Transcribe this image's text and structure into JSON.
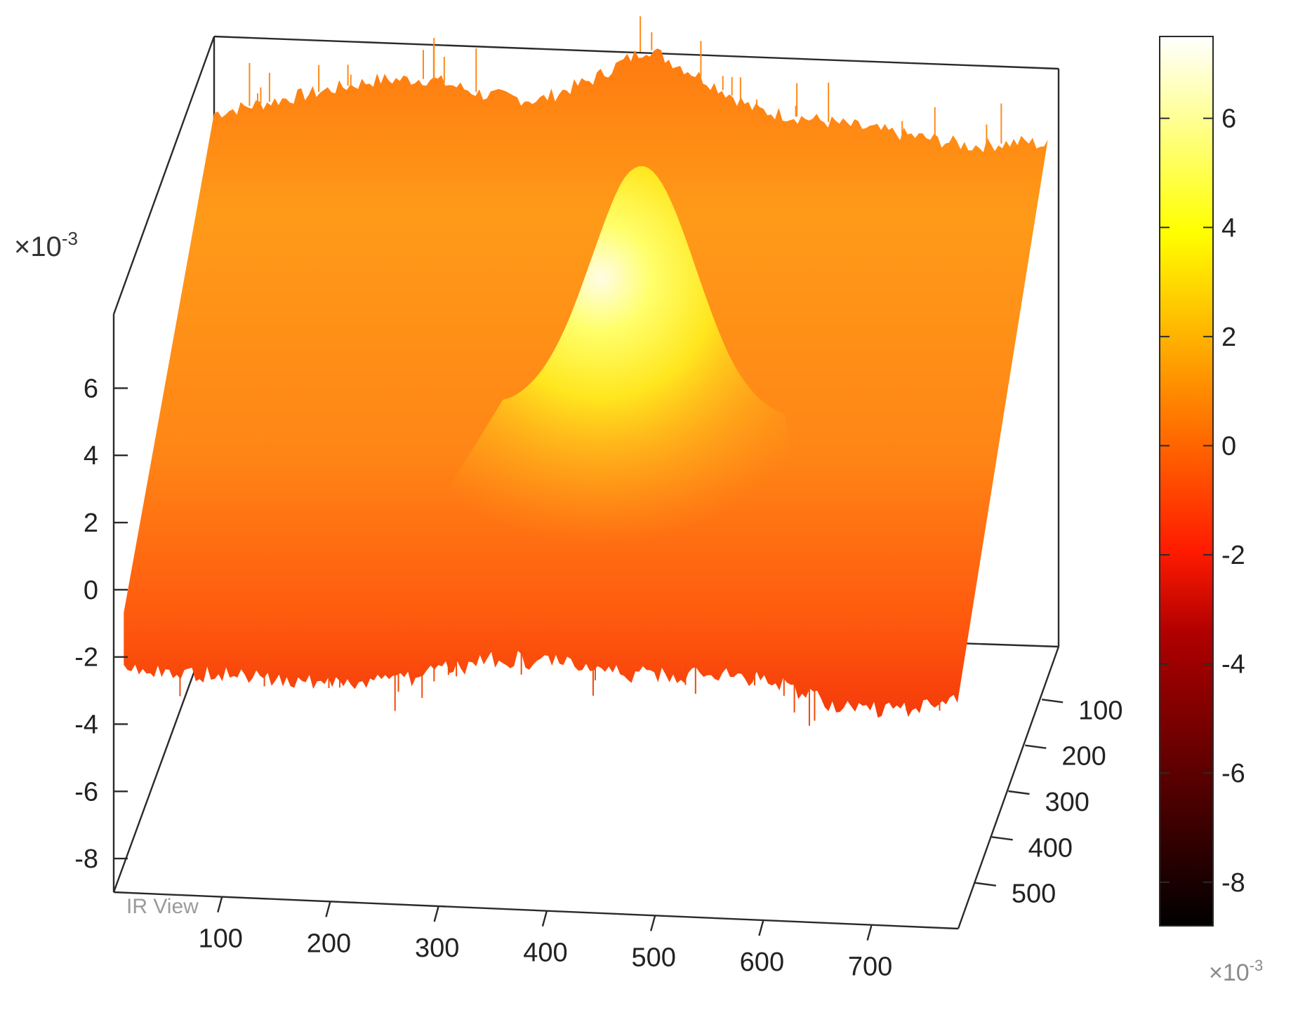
{
  "chart_data": {
    "type": "surface",
    "title": "",
    "watermark": "IR View",
    "x_ticks": [
      100,
      200,
      300,
      400,
      500,
      600,
      700
    ],
    "y_ticks": [
      100,
      200,
      300,
      400,
      500
    ],
    "z_ticks": [
      6,
      4,
      2,
      0,
      -2,
      -4,
      -6,
      -8
    ],
    "z_exponent": "×10",
    "z_exponent_power": "-3",
    "zlim": [
      -9,
      8.2
    ],
    "colorbar": {
      "colormap": "hot",
      "ticks": [
        6,
        4,
        2,
        0,
        -2,
        -4,
        -6,
        -8
      ],
      "range": [
        -8.8,
        7.5
      ],
      "exponent": "×10",
      "exponent_power": "-3"
    },
    "surface_profile": {
      "x": [
        0,
        50,
        100,
        150,
        200,
        250,
        300,
        350,
        400,
        450,
        500,
        550,
        600,
        650,
        700,
        750,
        770
      ],
      "front_edge_z": [
        -3.0,
        -2.9,
        -3.0,
        -3.1,
        -3.0,
        -2.95,
        -2.5,
        -2.1,
        -2.2,
        -2.4,
        -2.4,
        -2.3,
        -2.4,
        -3.0,
        -3.2,
        -3.0,
        -2.8
      ],
      "back_edge_z": [
        6.0,
        6.4,
        6.8,
        7.2,
        7.3,
        6.9,
        6.8,
        7.5,
        8.5,
        7.7,
        6.8,
        6.6,
        6.4,
        6.2,
        6.0,
        6.2,
        6.1
      ],
      "peak": {
        "x": 420,
        "y": 150,
        "z": 6.9
      }
    }
  }
}
